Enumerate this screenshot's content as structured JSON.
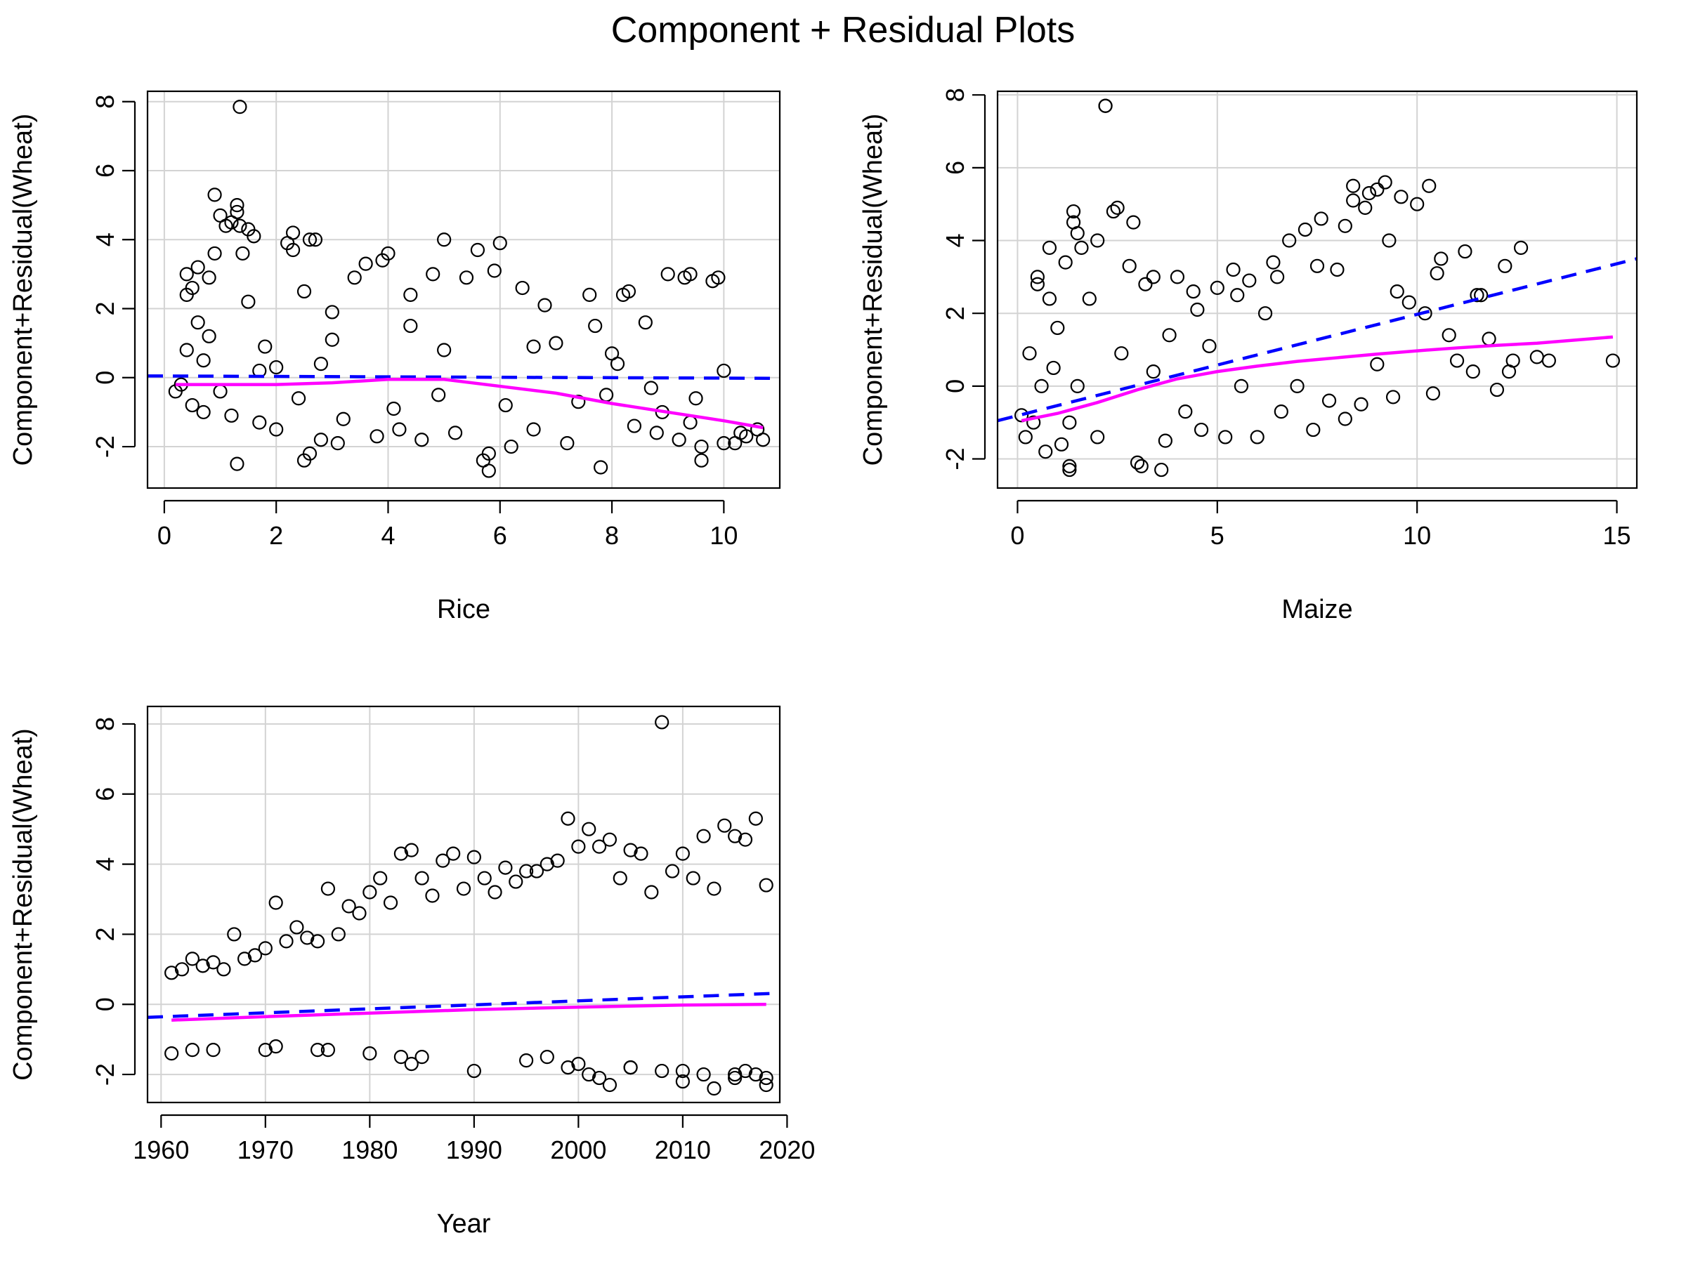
{
  "figure": {
    "title": "Component + Residual Plots"
  },
  "colors": {
    "points": "#000000",
    "linear_fit": "#0000ff",
    "smooth_fit": "#ff00ff",
    "grid": "#d3d3d3",
    "frame": "#000000"
  },
  "chart_data": [
    {
      "type": "scatter",
      "title": "",
      "xlabel": "Rice",
      "ylabel": "Component+Residual(Wheat)",
      "xlim": [
        -0.3,
        11.0
      ],
      "ylim": [
        -3.2,
        8.3
      ],
      "xticks": [
        0,
        2,
        4,
        6,
        8,
        10
      ],
      "yticks": [
        -2,
        0,
        2,
        4,
        6,
        8
      ],
      "grid": true,
      "series": [
        {
          "kind": "points",
          "marker": "open-circle",
          "x": [
            0.2,
            0.3,
            0.4,
            0.4,
            0.5,
            0.5,
            0.6,
            0.6,
            0.7,
            0.7,
            0.8,
            0.9,
            1.0,
            1.1,
            1.2,
            1.3,
            1.35,
            1.4,
            1.5,
            1.6,
            1.7,
            1.8,
            2.0,
            2.2,
            2.3,
            2.4,
            2.5,
            2.6,
            2.7,
            2.8,
            3.0,
            3.2,
            3.4,
            3.6,
            3.8,
            4.0,
            4.2,
            4.4,
            4.6,
            4.8,
            5.0,
            5.2,
            5.4,
            5.6,
            5.8,
            6.0,
            6.2,
            6.4,
            6.6,
            6.8,
            7.0,
            7.2,
            7.4,
            7.6,
            7.8,
            8.0,
            8.2,
            8.4,
            8.6,
            8.8,
            9.0,
            9.2,
            9.4,
            9.6,
            9.8,
            10.0,
            10.2,
            10.4,
            10.6,
            10.7,
            0.9,
            1.0,
            1.3,
            1.5,
            1.7,
            2.3,
            2.5,
            2.8,
            3.9,
            4.1,
            5.0,
            5.7,
            5.8,
            7.9,
            8.1,
            8.3,
            9.3,
            9.6,
            9.9,
            1.35,
            1.3,
            2.6,
            5.9,
            9.5,
            0.8,
            2.0,
            3.1,
            4.4,
            6.6,
            7.7,
            8.9,
            10.3,
            1.2,
            0.4,
            3.0,
            4.9,
            6.1,
            8.7,
            9.4,
            10.0
          ],
          "y": [
            -0.4,
            -0.2,
            0.8,
            2.4,
            2.6,
            -0.8,
            1.6,
            3.2,
            0.5,
            -1.0,
            2.9,
            3.6,
            4.7,
            4.4,
            4.5,
            5.0,
            7.85,
            3.6,
            2.2,
            4.1,
            -1.3,
            0.9,
            -1.5,
            3.9,
            4.2,
            -0.6,
            2.5,
            -2.2,
            4.0,
            -1.8,
            1.1,
            -1.2,
            2.9,
            3.3,
            -1.7,
            3.6,
            -1.5,
            2.4,
            -1.8,
            3.0,
            4.0,
            -1.6,
            2.9,
            3.7,
            -2.2,
            3.9,
            -2.0,
            2.6,
            -1.5,
            2.1,
            1.0,
            -1.9,
            -0.7,
            2.4,
            -2.6,
            0.7,
            2.4,
            -1.4,
            1.6,
            -1.6,
            3.0,
            -1.8,
            3.0,
            -2.4,
            2.8,
            0.2,
            -1.9,
            -1.7,
            -1.5,
            -1.8,
            5.3,
            -0.4,
            -2.5,
            4.3,
            0.2,
            3.7,
            -2.4,
            0.4,
            3.4,
            -0.9,
            0.8,
            -2.4,
            -2.7,
            -0.5,
            0.4,
            2.5,
            2.9,
            -2.0,
            2.9,
            4.4,
            4.8,
            4.0,
            3.1,
            -0.6,
            1.2,
            0.3,
            -1.9,
            1.5,
            0.9,
            1.5,
            -1.0,
            -1.6,
            -1.1,
            3.0,
            1.9,
            -0.5,
            -0.8,
            -0.3,
            -1.3,
            -1.9
          ]
        },
        {
          "kind": "linear-fit",
          "line": "dashed",
          "x": [
            -0.3,
            11.0
          ],
          "y": [
            0.05,
            -0.02
          ]
        },
        {
          "kind": "smooth-fit",
          "line": "solid",
          "x": [
            0.2,
            1.0,
            2.0,
            3.0,
            4.0,
            5.0,
            6.0,
            7.0,
            8.0,
            9.0,
            10.0,
            10.7
          ],
          "y": [
            -0.2,
            -0.2,
            -0.2,
            -0.15,
            -0.05,
            -0.05,
            -0.25,
            -0.45,
            -0.75,
            -1.0,
            -1.25,
            -1.45
          ]
        }
      ]
    },
    {
      "type": "scatter",
      "title": "",
      "xlabel": "Maize",
      "ylabel": "Component+Residual(Wheat)",
      "xlim": [
        -0.5,
        15.5
      ],
      "ylim": [
        -2.8,
        8.1
      ],
      "xticks": [
        0,
        5,
        10,
        15
      ],
      "yticks": [
        -2,
        0,
        2,
        4,
        6,
        8
      ],
      "grid": true,
      "series": [
        {
          "kind": "points",
          "marker": "open-circle",
          "x": [
            0.1,
            0.2,
            0.3,
            0.4,
            0.5,
            0.6,
            0.7,
            0.8,
            0.9,
            1.0,
            1.1,
            1.2,
            1.3,
            1.4,
            1.5,
            1.6,
            1.8,
            2.0,
            2.2,
            2.4,
            2.6,
            2.8,
            3.0,
            3.2,
            3.4,
            3.6,
            3.8,
            4.0,
            4.2,
            4.4,
            4.6,
            4.8,
            5.0,
            5.2,
            5.4,
            5.6,
            5.8,
            6.0,
            6.2,
            6.4,
            6.6,
            6.8,
            7.0,
            7.2,
            7.4,
            7.6,
            7.8,
            8.0,
            8.2,
            8.4,
            8.6,
            8.8,
            9.0,
            9.2,
            9.4,
            9.6,
            9.8,
            10.0,
            10.2,
            10.4,
            10.6,
            10.8,
            11.0,
            11.2,
            11.4,
            11.6,
            11.8,
            12.0,
            12.2,
            12.4,
            12.6,
            13.0,
            13.3,
            14.9,
            2.2,
            1.4,
            2.5,
            2.9,
            3.4,
            8.4,
            8.7,
            9.0,
            9.3,
            10.3,
            1.3,
            1.3,
            3.1,
            3.7,
            0.5,
            0.8,
            1.5,
            2.0,
            4.5,
            5.5,
            6.5,
            7.5,
            8.2,
            9.5,
            10.5,
            11.5,
            12.3
          ],
          "y": [
            -0.8,
            -1.4,
            0.9,
            -1.0,
            3.0,
            0.0,
            -1.8,
            2.4,
            0.5,
            1.6,
            -1.6,
            3.4,
            -2.2,
            4.8,
            0.0,
            3.8,
            2.4,
            -1.4,
            7.7,
            4.8,
            0.9,
            3.3,
            -2.1,
            2.8,
            0.4,
            -2.3,
            1.4,
            3.0,
            -0.7,
            2.6,
            -1.2,
            1.1,
            2.7,
            -1.4,
            3.2,
            0.0,
            2.9,
            -1.4,
            2.0,
            3.4,
            -0.7,
            4.0,
            0.0,
            4.3,
            -1.2,
            4.6,
            -0.4,
            3.2,
            -0.9,
            5.5,
            -0.5,
            5.3,
            0.6,
            5.6,
            -0.3,
            5.2,
            2.3,
            5.0,
            2.0,
            -0.2,
            3.5,
            1.4,
            0.7,
            3.7,
            0.4,
            2.5,
            1.3,
            -0.1,
            3.3,
            0.7,
            3.8,
            0.8,
            0.7,
            0.7,
            7.7,
            4.5,
            4.9,
            4.5,
            3.0,
            5.1,
            4.9,
            5.4,
            4.0,
            5.5,
            -2.3,
            -1.0,
            -2.2,
            -1.5,
            2.8,
            3.8,
            4.2,
            4.0,
            2.1,
            2.5,
            3.0,
            3.3,
            4.4,
            2.6,
            3.1,
            2.5,
            0.4
          ]
        },
        {
          "kind": "linear-fit",
          "line": "dashed",
          "x": [
            -0.5,
            15.5
          ],
          "y": [
            -0.95,
            3.5
          ]
        },
        {
          "kind": "smooth-fit",
          "line": "solid",
          "x": [
            0.1,
            1.0,
            2.0,
            3.0,
            4.0,
            4.5,
            5.0,
            6.0,
            7.0,
            8.0,
            9.0,
            10.0,
            11.0,
            12.0,
            13.0,
            14.9
          ],
          "y": [
            -0.95,
            -0.75,
            -0.45,
            -0.1,
            0.2,
            0.3,
            0.4,
            0.55,
            0.68,
            0.78,
            0.88,
            0.97,
            1.05,
            1.12,
            1.18,
            1.35
          ]
        }
      ]
    },
    {
      "type": "scatter",
      "title": "",
      "xlabel": "Year",
      "ylabel": "Component+Residual(Wheat)",
      "xlim": [
        1958.7,
        2019.3
      ],
      "ylim": [
        -2.8,
        8.5
      ],
      "xticks": [
        1960,
        1970,
        1980,
        1990,
        2000,
        2010,
        2020
      ],
      "yticks": [
        -2,
        0,
        2,
        4,
        6,
        8
      ],
      "grid": true,
      "series": [
        {
          "kind": "points",
          "marker": "open-circle",
          "x": [
            1961,
            1962,
            1963,
            1964,
            1965,
            1966,
            1967,
            1968,
            1969,
            1970,
            1971,
            1972,
            1973,
            1974,
            1975,
            1976,
            1977,
            1978,
            1979,
            1980,
            1981,
            1982,
            1983,
            1984,
            1985,
            1986,
            1987,
            1988,
            1989,
            1990,
            1991,
            1992,
            1993,
            1994,
            1995,
            1996,
            1997,
            1998,
            1999,
            2000,
            2001,
            2002,
            2003,
            2004,
            2005,
            2006,
            2007,
            2008,
            2009,
            2010,
            2011,
            2012,
            2013,
            2014,
            2015,
            2016,
            2017,
            2018,
            2008,
            1999,
            2001,
            2015,
            2017,
            1997,
            2003,
            1984,
            1990,
            1983,
            1976,
            1971,
            2010,
            2012,
            2002,
            2005,
            2016,
            2018,
            2013,
            1961,
            1963,
            1965,
            1970,
            1975,
            1980,
            1985,
            1995,
            2000,
            2005,
            2010,
            2015,
            2018
          ],
          "y": [
            0.9,
            1.0,
            1.3,
            1.1,
            1.2,
            1.0,
            2.0,
            1.3,
            1.4,
            1.6,
            2.9,
            1.8,
            2.2,
            1.9,
            1.8,
            3.3,
            2.0,
            2.8,
            2.6,
            3.2,
            3.6,
            2.9,
            4.3,
            4.4,
            3.6,
            3.1,
            4.1,
            4.3,
            3.3,
            4.2,
            3.6,
            3.2,
            3.9,
            3.5,
            3.8,
            3.8,
            4.0,
            4.1,
            5.3,
            4.5,
            5.0,
            4.5,
            4.7,
            3.6,
            4.4,
            4.3,
            3.2,
            8.05,
            3.8,
            4.3,
            3.6,
            4.8,
            3.3,
            5.1,
            4.8,
            4.7,
            5.3,
            3.4,
            -1.9,
            -1.8,
            -2.0,
            -2.1,
            -2.0,
            -1.5,
            -2.3,
            -1.7,
            -1.9,
            -1.5,
            -1.3,
            -1.2,
            -2.2,
            -2.0,
            -2.1,
            -1.8,
            -1.9,
            -2.3,
            -2.4,
            -1.4,
            -1.3,
            -1.3,
            -1.3,
            -1.3,
            -1.4,
            -1.5,
            -1.6,
            -1.7,
            -1.8,
            -1.9,
            -2.0,
            -2.1
          ]
        },
        {
          "kind": "linear-fit",
          "line": "dashed",
          "x": [
            1958.7,
            2019.3
          ],
          "y": [
            -0.37,
            0.32
          ]
        },
        {
          "kind": "smooth-fit",
          "line": "solid",
          "x": [
            1961,
            1970,
            1980,
            1990,
            2000,
            2010,
            2018
          ],
          "y": [
            -0.45,
            -0.35,
            -0.25,
            -0.15,
            -0.08,
            -0.02,
            0.0
          ]
        }
      ]
    }
  ]
}
